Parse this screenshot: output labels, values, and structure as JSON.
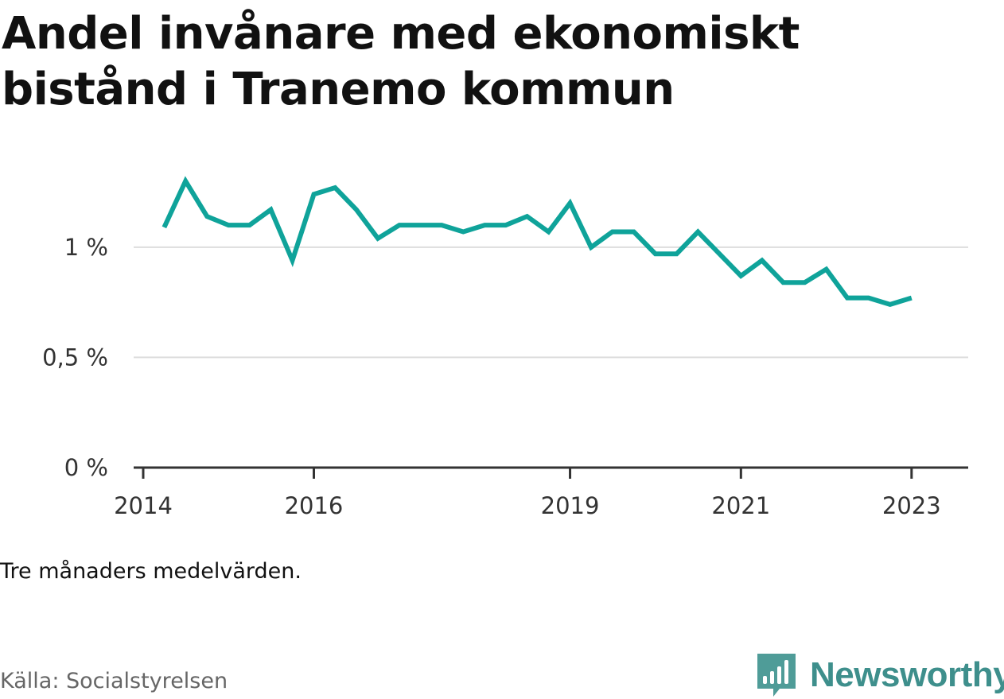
{
  "title": "Andel invånare med ekonomiskt bistånd i Tranemo kommun",
  "note": "Tre månaders medelvärden.",
  "source": "Källa: Socialstyrelsen",
  "brand": {
    "name": "Newsworthy",
    "icon": "newsworthy-logo-icon",
    "color": "#3e8f8c"
  },
  "chart_data": {
    "type": "line",
    "title": "Andel invånare med ekonomiskt bistånd i Tranemo kommun",
    "xlabel": "",
    "ylabel": "",
    "ylim": [
      0,
      1.4
    ],
    "xlim": [
      "2014-01-01",
      "2023-07-01"
    ],
    "grid": true,
    "yticks": [
      {
        "value": 0,
        "label": "0 %"
      },
      {
        "value": 0.5,
        "label": "0,5 %"
      },
      {
        "value": 1,
        "label": "1 %"
      }
    ],
    "xticks": [
      {
        "value": "2014-01-01",
        "label": "2014"
      },
      {
        "value": "2016-01-01",
        "label": "2016"
      },
      {
        "value": "2019-01-01",
        "label": "2019"
      },
      {
        "value": "2021-01-01",
        "label": "2021"
      },
      {
        "value": "2023-01-01",
        "label": "2023"
      }
    ],
    "color": "#0fa39a",
    "series": [
      {
        "x": [
          "2014-04-01",
          "2014-07-01",
          "2014-10-01",
          "2015-01-01",
          "2015-04-01",
          "2015-07-01",
          "2015-10-01",
          "2016-01-01",
          "2016-04-01",
          "2016-07-01",
          "2016-10-01",
          "2017-01-01",
          "2017-04-01",
          "2017-07-01",
          "2017-10-01",
          "2018-01-01",
          "2018-04-01",
          "2018-07-01",
          "2018-10-01",
          "2019-01-01",
          "2019-04-01",
          "2019-07-01",
          "2019-10-01",
          "2020-01-01",
          "2020-04-01",
          "2020-07-01",
          "2020-10-01",
          "2021-01-01",
          "2021-04-01",
          "2021-07-01",
          "2021-10-01",
          "2022-01-01",
          "2022-04-01",
          "2022-07-01",
          "2022-10-01",
          "2023-01-01"
        ],
        "values": [
          1.09,
          1.3,
          1.14,
          1.1,
          1.1,
          1.17,
          0.94,
          1.24,
          1.27,
          1.17,
          1.04,
          1.1,
          1.1,
          1.1,
          1.07,
          1.1,
          1.1,
          1.14,
          1.07,
          1.2,
          1.0,
          1.07,
          1.07,
          0.97,
          0.97,
          1.07,
          0.97,
          0.87,
          0.94,
          0.84,
          0.84,
          0.9,
          0.77,
          0.77,
          0.74,
          0.77
        ]
      }
    ]
  }
}
